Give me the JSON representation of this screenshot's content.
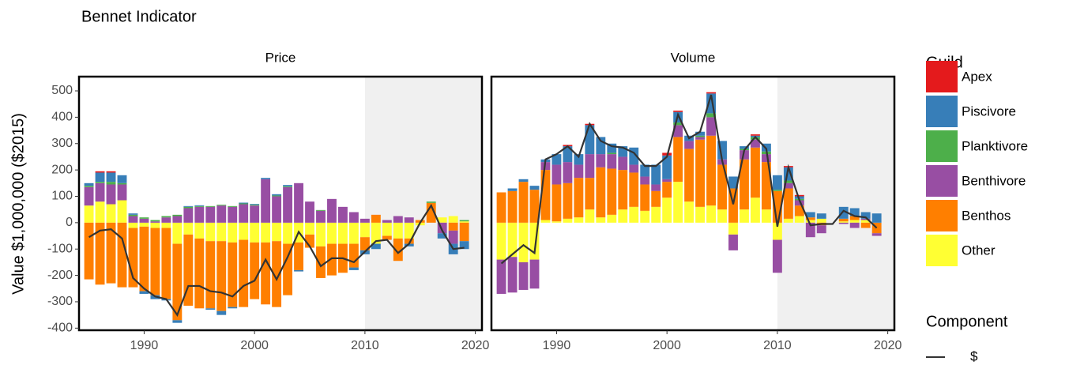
{
  "title": "Bennet Indicator",
  "y_label": "Value $1,000,000 ($2015)",
  "legend_title": "Guild",
  "component_title": "Component",
  "chart_data": [
    {
      "type": "bar",
      "stacked": true,
      "title": "Price",
      "x": [
        1985,
        1986,
        1987,
        1988,
        1989,
        1990,
        1991,
        1992,
        1993,
        1994,
        1995,
        1996,
        1997,
        1998,
        1999,
        2000,
        2001,
        2002,
        2003,
        2004,
        2005,
        2006,
        2007,
        2008,
        2009,
        2010,
        2011,
        2012,
        2013,
        2014,
        2015,
        2016,
        2017,
        2018,
        2019
      ],
      "xlim": [
        1984.1,
        2020.6
      ],
      "xticks": [
        1990,
        2000,
        2010,
        2020
      ],
      "ylim": [
        -408,
        554
      ],
      "yticks": [
        -400,
        -300,
        -200,
        -100,
        0,
        100,
        200,
        300,
        400,
        500
      ],
      "shaded_from": 2010,
      "series": [
        {
          "name": "Apex",
          "color": "#e41a1c",
          "values": [
            0,
            5,
            5,
            0,
            0,
            0,
            0,
            0,
            0,
            0,
            0,
            0,
            0,
            0,
            0,
            0,
            0,
            0,
            0,
            0,
            0,
            0,
            0,
            0,
            0,
            0,
            0,
            0,
            0,
            0,
            0,
            0,
            0,
            0,
            0
          ]
        },
        {
          "name": "Piscivore",
          "color": "#377eb8",
          "values": [
            10,
            35,
            35,
            30,
            5,
            -10,
            -15,
            -5,
            -10,
            3,
            3,
            -5,
            -15,
            -5,
            3,
            3,
            5,
            5,
            5,
            -5,
            0,
            0,
            0,
            0,
            -10,
            -15,
            -20,
            0,
            0,
            -10,
            0,
            0,
            -20,
            -40,
            -30
          ]
        },
        {
          "name": "Planktivore",
          "color": "#4daf4a",
          "values": [
            5,
            5,
            10,
            5,
            5,
            5,
            5,
            5,
            5,
            5,
            3,
            3,
            3,
            3,
            3,
            3,
            0,
            3,
            3,
            0,
            0,
            3,
            0,
            0,
            0,
            0,
            0,
            0,
            0,
            0,
            0,
            5,
            0,
            0,
            5
          ]
        },
        {
          "name": "Benthivore",
          "color": "#984ea3",
          "values": [
            70,
            70,
            75,
            60,
            25,
            15,
            5,
            20,
            25,
            55,
            60,
            60,
            65,
            60,
            70,
            65,
            165,
            100,
            135,
            150,
            80,
            45,
            90,
            60,
            40,
            15,
            0,
            10,
            25,
            20,
            0,
            0,
            -40,
            -50,
            0
          ]
        },
        {
          "name": "Benthos",
          "color": "#ff7f00",
          "values": [
            -215,
            -235,
            -230,
            -245,
            -225,
            -245,
            -255,
            -270,
            -290,
            -270,
            -265,
            -255,
            -265,
            -245,
            -255,
            -215,
            -235,
            -250,
            -195,
            -105,
            -50,
            -120,
            -120,
            -110,
            -90,
            -50,
            30,
            -15,
            -85,
            -20,
            10,
            75,
            0,
            -30,
            -70
          ]
        },
        {
          "name": "Other",
          "color": "#ffff33",
          "values": [
            65,
            80,
            70,
            85,
            -20,
            -15,
            -20,
            -20,
            -80,
            -45,
            -60,
            -70,
            -70,
            -75,
            -65,
            -75,
            -75,
            -70,
            -80,
            -75,
            -45,
            -90,
            -80,
            -80,
            -80,
            -55,
            -80,
            -50,
            -60,
            -60,
            -10,
            0,
            20,
            25,
            5
          ]
        }
      ],
      "line": {
        "name": "$",
        "color": "#333333",
        "values": [
          -55,
          -30,
          -25,
          -60,
          -210,
          -250,
          -280,
          -290,
          -350,
          -240,
          -240,
          -260,
          -265,
          -280,
          -240,
          -220,
          -140,
          -215,
          -130,
          -35,
          -90,
          -165,
          -135,
          -135,
          -150,
          -110,
          -70,
          -65,
          -115,
          -80,
          0,
          65,
          -30,
          -100,
          -95
        ]
      }
    },
    {
      "type": "bar",
      "stacked": true,
      "title": "Volume",
      "x": [
        1985,
        1986,
        1987,
        1988,
        1989,
        1990,
        1991,
        1992,
        1993,
        1994,
        1995,
        1996,
        1997,
        1998,
        1999,
        2000,
        2001,
        2002,
        2003,
        2004,
        2005,
        2006,
        2007,
        2008,
        2009,
        2010,
        2011,
        2012,
        2013,
        2014,
        2015,
        2016,
        2017,
        2018,
        2019
      ],
      "xlim": [
        1984.1,
        2020.6
      ],
      "xticks": [
        1990,
        2000,
        2010,
        2020
      ],
      "ylim": [
        -408,
        554
      ],
      "shaded_from": 2010,
      "series": [
        {
          "name": "Apex",
          "color": "#e41a1c",
          "values": [
            0,
            0,
            0,
            0,
            0,
            0,
            5,
            0,
            5,
            0,
            0,
            0,
            0,
            0,
            0,
            10,
            5,
            0,
            0,
            5,
            0,
            0,
            0,
            5,
            0,
            0,
            5,
            5,
            0,
            0,
            0,
            0,
            0,
            0,
            0
          ]
        },
        {
          "name": "Piscivore",
          "color": "#377eb8",
          "values": [
            0,
            10,
            10,
            15,
            10,
            40,
            60,
            40,
            110,
            65,
            35,
            40,
            65,
            45,
            75,
            90,
            40,
            20,
            15,
            75,
            70,
            45,
            10,
            5,
            30,
            55,
            50,
            10,
            20,
            20,
            0,
            45,
            30,
            25,
            35
          ]
        },
        {
          "name": "Planktivore",
          "color": "#4daf4a",
          "values": [
            0,
            0,
            0,
            0,
            0,
            0,
            0,
            0,
            0,
            0,
            5,
            0,
            0,
            0,
            0,
            0,
            10,
            0,
            5,
            15,
            0,
            0,
            5,
            10,
            10,
            5,
            10,
            5,
            0,
            0,
            0,
            0,
            0,
            0,
            0
          ]
        },
        {
          "name": "Benthivore",
          "color": "#984ea3",
          "values": [
            -130,
            -135,
            -105,
            -110,
            30,
            75,
            80,
            50,
            90,
            50,
            55,
            50,
            30,
            30,
            25,
            10,
            45,
            30,
            10,
            70,
            20,
            -60,
            35,
            30,
            30,
            -125,
            20,
            20,
            -55,
            -30,
            0,
            -5,
            -20,
            5,
            -10
          ]
        },
        {
          "name": "Benthos",
          "color": "#ff7f00",
          "values": [
            115,
            120,
            155,
            125,
            190,
            140,
            135,
            150,
            120,
            190,
            175,
            150,
            130,
            100,
            60,
            60,
            170,
            200,
            255,
            265,
            170,
            130,
            190,
            190,
            180,
            120,
            115,
            40,
            10,
            -10,
            0,
            10,
            15,
            -20,
            -40
          ]
        },
        {
          "name": "Other",
          "color": "#ffff33",
          "values": [
            -140,
            -130,
            -150,
            -140,
            10,
            5,
            15,
            20,
            50,
            20,
            30,
            50,
            60,
            45,
            60,
            95,
            155,
            80,
            60,
            65,
            50,
            -45,
            50,
            95,
            50,
            -65,
            15,
            25,
            10,
            15,
            0,
            5,
            10,
            10,
            0
          ]
        }
      ],
      "line": {
        "name": "$",
        "color": "#333333",
        "values": [
          -155,
          -120,
          -85,
          -115,
          240,
          260,
          290,
          250,
          375,
          310,
          290,
          285,
          265,
          215,
          215,
          250,
          410,
          320,
          345,
          485,
          235,
          70,
          275,
          325,
          280,
          -15,
          210,
          85,
          -10,
          -5,
          -5,
          45,
          25,
          20,
          -20
        ]
      }
    }
  ]
}
